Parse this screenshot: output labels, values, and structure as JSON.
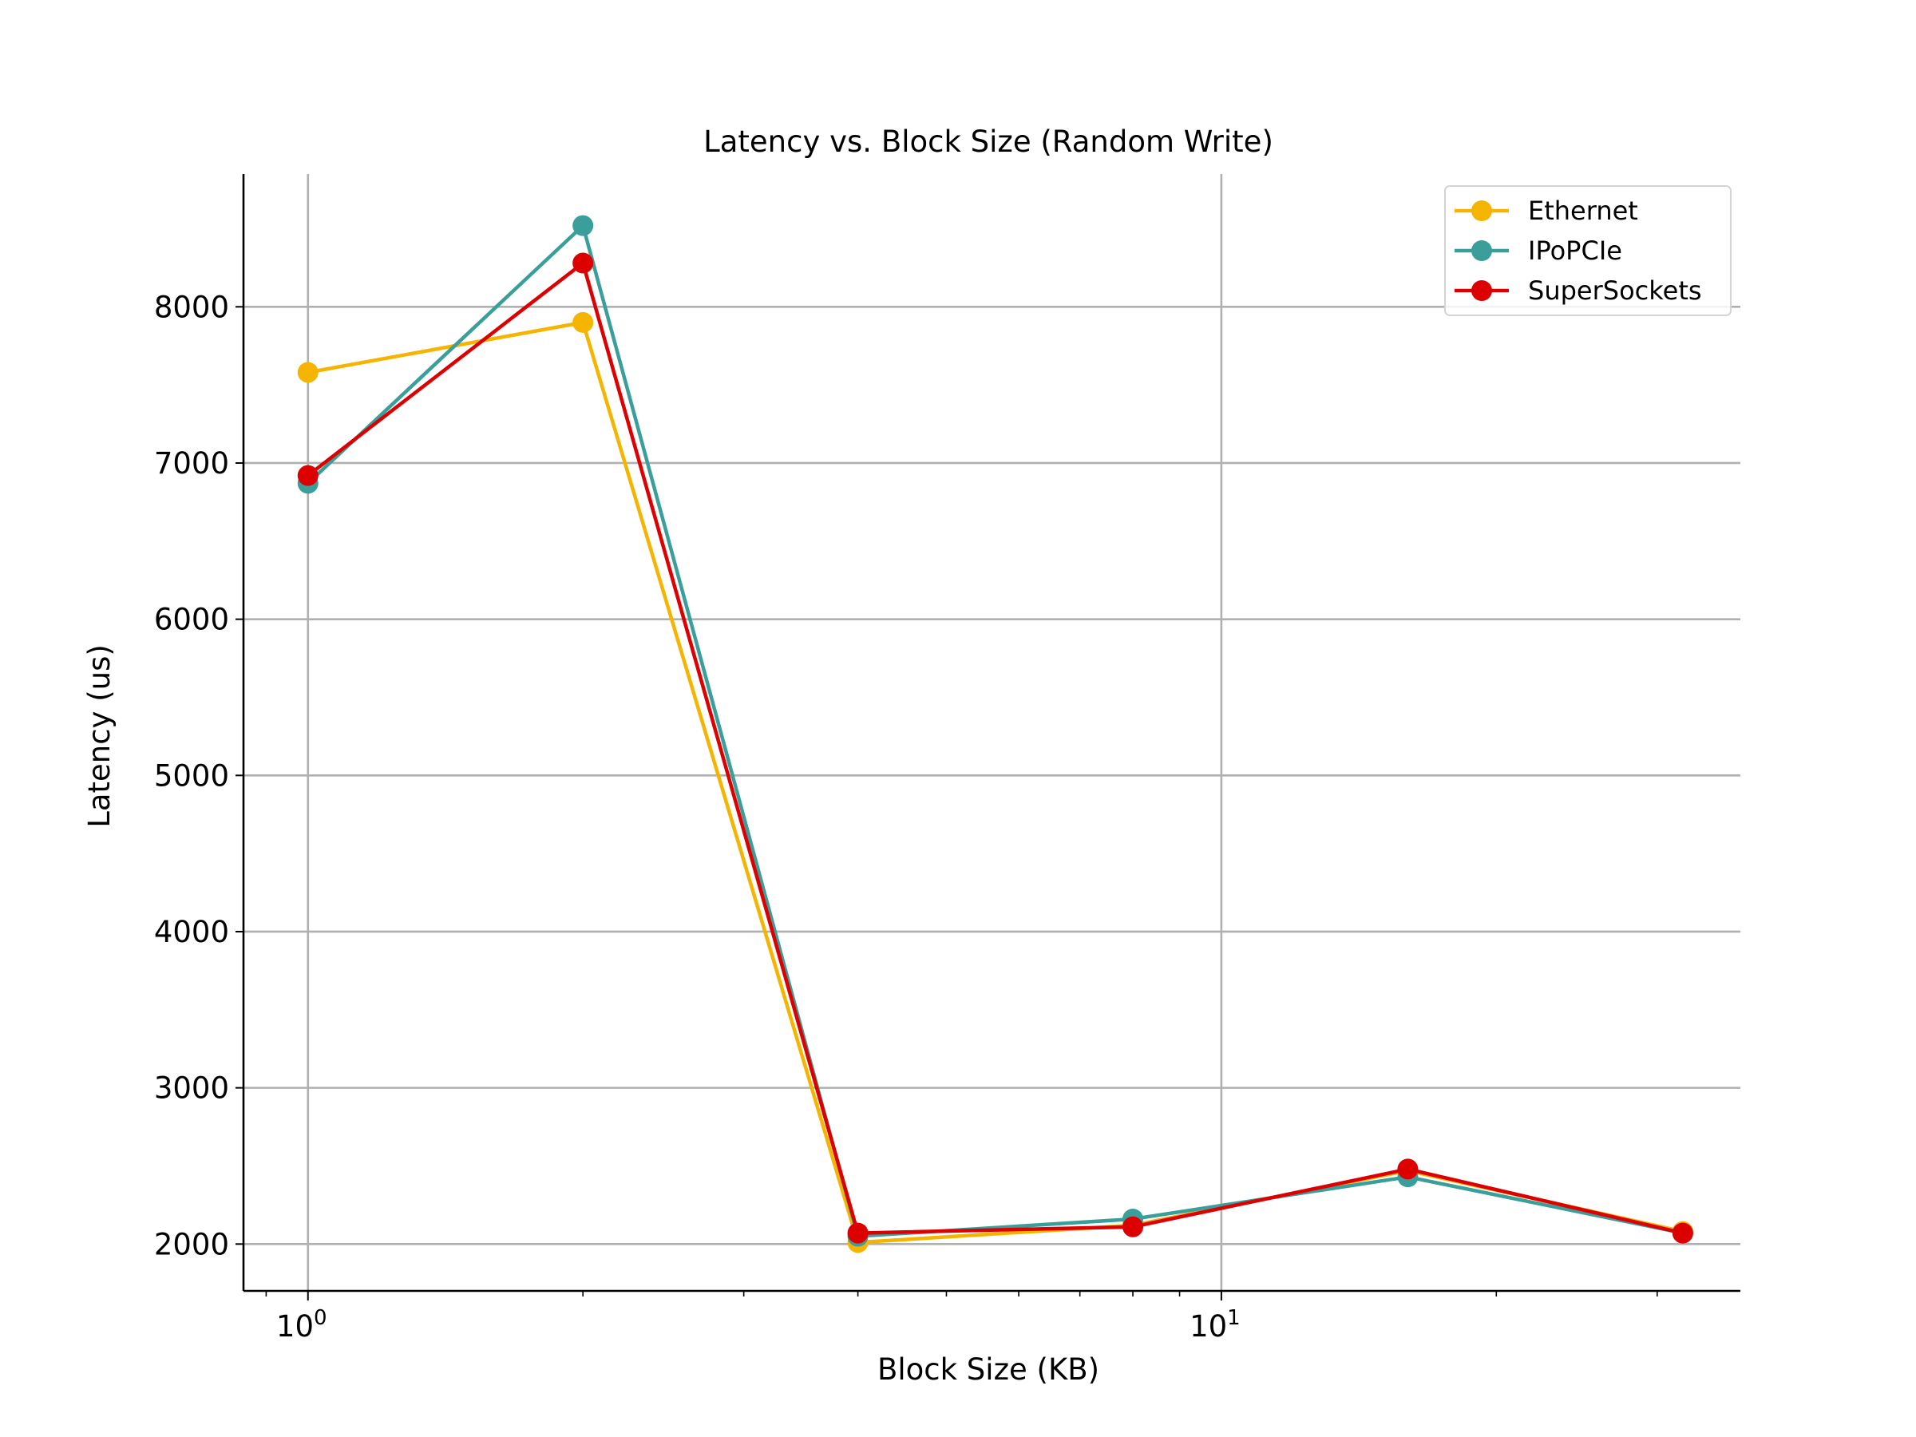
{
  "chart_data": {
    "type": "line",
    "title": "Latency vs. Block Size (Random Write)",
    "xlabel": "Block Size (KB)",
    "ylabel": "Latency (us)",
    "x_scale": "log",
    "x": [
      1,
      2,
      4,
      8,
      16,
      32
    ],
    "xlim": [
      0.85,
      37
    ],
    "ylim": [
      1700,
      8850
    ],
    "yticks": [
      2000,
      3000,
      4000,
      5000,
      6000,
      7000,
      8000
    ],
    "xticks": [
      {
        "value": 1,
        "base": "10",
        "exp": "0"
      },
      {
        "value": 10,
        "base": "10",
        "exp": "1"
      }
    ],
    "grid": true,
    "legend": "top-right",
    "series": [
      {
        "name": "Ethernet",
        "color": "#F5B400",
        "values": [
          7580,
          7900,
          2010,
          2120,
          2470,
          2080
        ]
      },
      {
        "name": "IPoPCIe",
        "color": "#3A9E9A",
        "values": [
          6870,
          8520,
          2050,
          2160,
          2430,
          2070
        ]
      },
      {
        "name": "SuperSockets",
        "color": "#DD0000",
        "values": [
          6920,
          8280,
          2070,
          2110,
          2480,
          2070
        ]
      }
    ]
  }
}
